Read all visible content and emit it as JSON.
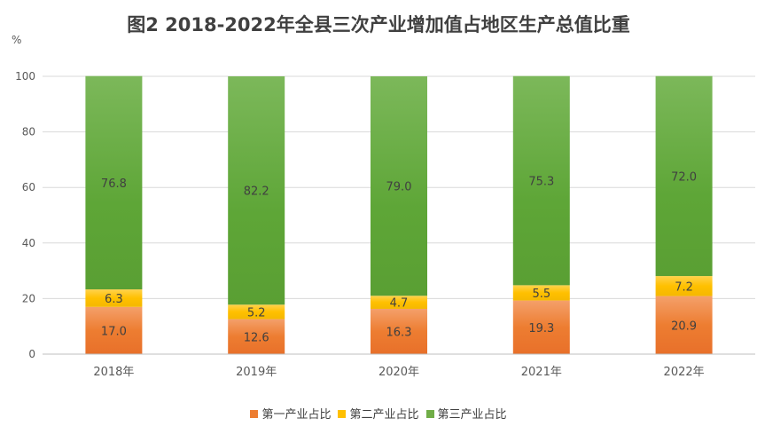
{
  "chart_data": {
    "type": "bar",
    "stacked": true,
    "title": "图2  2018-2022年全县三次产业增加值占地区生产总值比重",
    "unit": "%",
    "categories": [
      "2018年",
      "2019年",
      "2020年",
      "2021年",
      "2022年"
    ],
    "ylim": [
      0,
      100
    ],
    "yticks": [
      0,
      20,
      40,
      60,
      80,
      100
    ],
    "grid": true,
    "legend_position": "bottom",
    "series": [
      {
        "name": "第一产业占比",
        "color": "#ED7D31",
        "values": [
          17.0,
          12.6,
          16.3,
          19.3,
          20.9
        ],
        "labels": [
          "17.0",
          "12.6",
          "16.3",
          "19.3",
          "20.9"
        ]
      },
      {
        "name": "第二产业占比",
        "color": "#FFC000",
        "values": [
          6.3,
          5.2,
          4.7,
          5.5,
          7.2
        ],
        "labels": [
          "6.3",
          "5.2",
          "4.7",
          "5.5",
          "7.2"
        ]
      },
      {
        "name": "第三产业占比",
        "color": "#70AD47",
        "values": [
          76.8,
          82.2,
          79.0,
          75.3,
          72.0
        ],
        "labels": [
          "76.8",
          "82.2",
          "79.0",
          "75.3",
          "72.0"
        ]
      }
    ]
  }
}
